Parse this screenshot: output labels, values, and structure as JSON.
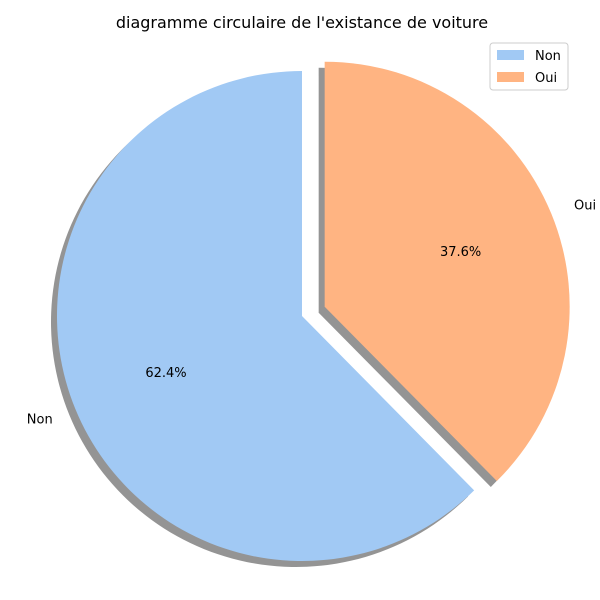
{
  "chart_data": {
    "type": "pie",
    "title": "diagramme circulaire de l'existance de voiture",
    "categories": [
      "Non",
      "Oui"
    ],
    "values": [
      62.4,
      37.6
    ],
    "percent_labels": [
      "62.4%",
      "37.6%"
    ],
    "colors": [
      "#a1c9f4",
      "#ffb482"
    ],
    "exploded": [
      false,
      true
    ],
    "shadow": true,
    "start_angle_deg": 90,
    "direction": "counterclockwise",
    "legend": {
      "placement": "top-right",
      "entries": [
        "Non",
        "Oui"
      ]
    }
  }
}
